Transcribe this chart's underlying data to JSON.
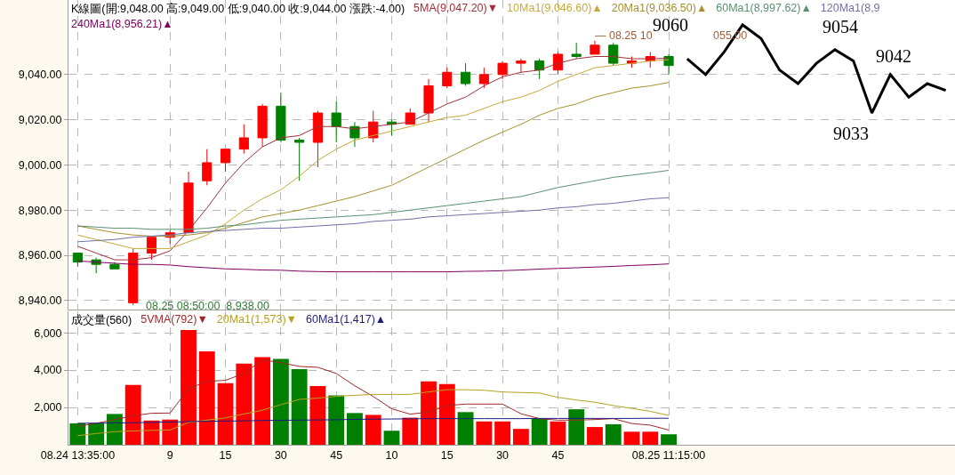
{
  "chart_data": [
    {
      "type": "candlestick",
      "title": "K線圖(開:9,048.00 高:9,049.00 低:9,040.00 收:9,044.00 漲跌:-4.00)",
      "categories": [
        null,
        null,
        null,
        null,
        null,
        null,
        null,
        null,
        null,
        null,
        null,
        null,
        null,
        null,
        null,
        null,
        null,
        null,
        null,
        null,
        null,
        null,
        null,
        null,
        null,
        null,
        null,
        null,
        null,
        null,
        null,
        null,
        null,
        null,
        null,
        null,
        null,
        null,
        null,
        null,
        null,
        null,
        null,
        null,
        null,
        null,
        null,
        null
      ],
      "ohlc": [
        [
          8961,
          8961,
          8955,
          8957
        ],
        [
          8958,
          8959,
          8952,
          8956
        ],
        [
          8956,
          8957,
          8954,
          8954
        ],
        [
          8939,
          8963,
          8938,
          8961
        ],
        [
          8961,
          8968,
          8958,
          8968
        ],
        [
          8968,
          8971,
          8965,
          8970
        ],
        [
          8970,
          8997,
          8970,
          8992
        ],
        [
          8993,
          9007,
          8991,
          9001
        ],
        [
          9001,
          9007,
          8997,
          9007
        ],
        [
          9007,
          9018,
          9005,
          9012
        ],
        [
          9012,
          9027,
          9008,
          9026
        ],
        [
          9026,
          9032,
          9010,
          9011
        ],
        [
          9011,
          9012,
          8993,
          9010
        ],
        [
          9010,
          9024,
          8999,
          9023
        ],
        [
          9023,
          9028,
          9010,
          9017
        ],
        [
          9017,
          9019,
          9008,
          9012
        ],
        [
          9012,
          9024,
          9010,
          9019
        ],
        [
          9019,
          9020,
          9013,
          9018
        ],
        [
          9018,
          9025,
          9018,
          9023
        ],
        [
          9023,
          9038,
          9019,
          9035
        ],
        [
          9035,
          9043,
          9034,
          9041
        ],
        [
          9041,
          9045,
          9035,
          9036
        ],
        [
          9036,
          9043,
          9034,
          9040
        ],
        [
          9040,
          9046,
          9038,
          9045
        ],
        [
          9045,
          9047,
          9041,
          9046
        ],
        [
          9046,
          9047,
          9038,
          9042
        ],
        [
          9042,
          9050,
          9040,
          9049
        ],
        [
          9049,
          9054,
          9047,
          9048
        ],
        [
          9049,
          9055,
          9049,
          9053
        ],
        [
          9053,
          9054,
          9044,
          9045
        ],
        [
          9045,
          9048,
          9043,
          9046
        ],
        [
          9046,
          9050,
          9043,
          9048
        ],
        [
          9048,
          9049,
          9040,
          9044
        ],
        null,
        null,
        null,
        null,
        null,
        null,
        null,
        null,
        null,
        null,
        null,
        null,
        null,
        null,
        null
      ],
      "colors": [
        "#008000",
        "#008000",
        "#008000",
        "#ff0000",
        "#ff0000",
        "#ff0000",
        "#ff0000",
        "#ff0000",
        "#ff0000",
        "#ff0000",
        "#ff0000",
        "#008000",
        "#008000",
        "#ff0000",
        "#008000",
        "#008000",
        "#ff0000",
        "#008000",
        "#ff0000",
        "#ff0000",
        "#ff0000",
        "#008000",
        "#ff0000",
        "#ff0000",
        "#ff0000",
        "#008000",
        "#ff0000",
        "#008000",
        "#ff0000",
        "#008000",
        "#ff0000",
        "#ff0000",
        "#008000",
        null,
        null,
        null,
        null,
        null,
        null,
        null,
        null,
        null,
        null,
        null,
        null,
        null,
        null,
        null
      ],
      "series": [
        {
          "type": "line",
          "name": "5MA(9,047.20)▼",
          "color": "#a0303a",
          "values": [
            8964,
            8961,
            8958,
            8958,
            8959,
            8962,
            8971,
            8981,
            8992,
            9001,
            9008,
            9012,
            9013,
            9017,
            9017,
            9016,
            9017,
            9018,
            9019,
            9023,
            9027,
            9030,
            9035,
            9039,
            9041,
            9042,
            9045,
            9047,
            9048,
            9048,
            9047,
            9047,
            9047.2,
            null,
            null,
            null,
            null,
            null,
            null,
            null,
            null,
            null,
            null,
            null,
            null,
            null,
            null,
            null
          ]
        },
        {
          "type": "line",
          "name": "10Ma1(9,046.60)▲",
          "color": "#c8aa3c",
          "values": [
            8969,
            8967,
            8965,
            8963,
            8963,
            8963,
            8966,
            8969,
            8974,
            8980,
            8985,
            8989,
            8995,
            9002,
            9007,
            9011,
            9013,
            9015,
            9017,
            9019,
            9021,
            9022,
            9025,
            9028,
            9030,
            9033,
            9037,
            9040,
            9043,
            9044,
            9045,
            9046,
            9046.6,
            null,
            null,
            null,
            null,
            null,
            null,
            null,
            null,
            null,
            null,
            null,
            null,
            null,
            null,
            null
          ]
        },
        {
          "type": "line",
          "name": "20Ma1(9,036.50)▲",
          "color": "#a8902c",
          "values": [
            8973,
            8971.5,
            8970,
            8969,
            8968.5,
            8968.5,
            8969,
            8970,
            8972,
            8974.5,
            8977,
            8978.5,
            8980,
            8982,
            8984,
            8986,
            8988.5,
            8991,
            8995,
            8999,
            9003,
            9007,
            9011,
            9014.5,
            9018,
            9022,
            9025,
            9027,
            9030,
            9032,
            9034,
            9035,
            9036.5,
            null,
            null,
            null,
            null,
            null,
            null,
            null,
            null,
            null,
            null,
            null,
            null,
            null,
            null,
            null
          ]
        },
        {
          "type": "line",
          "name": "60Ma1(8,997.62)▲",
          "color": "#5a9070",
          "values": [
            8973,
            8972.5,
            8972,
            8972,
            8971.5,
            8971.5,
            8971.5,
            8972,
            8973,
            8973.5,
            8974.5,
            8975.5,
            8976,
            8976.5,
            8977,
            8977.5,
            8978,
            8979,
            8980,
            8981,
            8982,
            8983,
            8984,
            8985,
            8986,
            8988,
            8990,
            8991.5,
            8993,
            8994.5,
            8995.5,
            8996.5,
            8997.6,
            null,
            null,
            null,
            null,
            null,
            null,
            null,
            null,
            null,
            null,
            null,
            null,
            null,
            null,
            null
          ]
        },
        {
          "type": "line",
          "name": "120Ma1(8,9",
          "color": "#7070a8",
          "values": [
            8966,
            8966.5,
            8967,
            8968,
            8968.5,
            8969,
            8970,
            8970.5,
            8971,
            8971.5,
            8972,
            8972,
            8972.5,
            8973,
            8973.5,
            8974,
            8975,
            8975.5,
            8976,
            8977,
            8977.5,
            8978,
            8978.5,
            8979,
            8979.5,
            8980,
            8981,
            8981.5,
            8982.5,
            8983,
            8984,
            8985,
            8985.5,
            null,
            null,
            null,
            null,
            null,
            null,
            null,
            null,
            null,
            null,
            null,
            null,
            null,
            null,
            null
          ]
        },
        {
          "type": "line",
          "name": "240Ma1(8,956.21)▲",
          "color": "#800060",
          "values": [
            8957.5,
            8957,
            8956.5,
            8956,
            8956,
            8955.7,
            8955,
            8954.5,
            8954,
            8953.8,
            8953.5,
            8953.4,
            8953,
            8952.8,
            8952.7,
            8952.7,
            8952.7,
            8952.7,
            8952.7,
            8952.7,
            8952.7,
            8952.9,
            8953,
            8953.2,
            8953.5,
            8953.9,
            8954.2,
            8954.5,
            8954.8,
            8955.1,
            8955.5,
            8955.8,
            8956.2,
            null,
            null,
            null,
            null,
            null,
            null,
            null,
            null,
            null,
            null,
            null,
            null,
            null,
            null,
            null
          ]
        },
        {
          "type": "line",
          "color": "#000000",
          "values": [
            null,
            null,
            null,
            null,
            null,
            null,
            null,
            null,
            null,
            null,
            null,
            null,
            null,
            null,
            null,
            null,
            null,
            null,
            null,
            null,
            null,
            null,
            null,
            null,
            null,
            null,
            null,
            null,
            null,
            null,
            null,
            null,
            null,
            9047,
            9040,
            9050,
            9062,
            9056,
            9042,
            9036,
            9045,
            9051,
            9046,
            9023,
            9040,
            9030,
            9036,
            9033
          ]
        }
      ],
      "annotations": [
        "08.25 08:50:00  8,938.00",
        "— 08.25 10",
        "055.00",
        "9060",
        "9054",
        "9042",
        "9033"
      ],
      "ylim": [
        8936,
        9073
      ],
      "yticks": [
        {
          "value": 8940,
          "label": "8,940.00"
        },
        {
          "value": 8960,
          "label": "8,960.00"
        },
        {
          "value": 8980,
          "label": "8,980.00"
        },
        {
          "value": 9000,
          "label": "9,000.00"
        },
        {
          "value": 9020,
          "label": "9,020.00"
        },
        {
          "value": 9040,
          "label": "9,040.00"
        }
      ],
      "tick_labels": "y",
      "grid": true,
      "legend": "top"
    },
    {
      "type": "bar",
      "title": "成交量(560)",
      "categories": [
        "08.24 13:35:00",
        null,
        null,
        null,
        null,
        "9",
        null,
        null,
        "15",
        null,
        null,
        "30",
        null,
        null,
        "45",
        null,
        null,
        "10",
        null,
        null,
        "15",
        null,
        null,
        "30",
        null,
        null,
        "45",
        null,
        null,
        null,
        null,
        null,
        "08.25 11:15:00",
        null,
        null,
        null,
        null,
        null,
        null,
        null,
        null,
        null,
        null,
        null,
        null,
        null,
        null,
        null
      ],
      "series": [
        {
          "type": "bar",
          "colors": [
            "#008000",
            "#008000",
            "#008000",
            "#ff0000",
            "#ff0000",
            "#ff0000",
            "#ff0000",
            "#ff0000",
            "#ff0000",
            "#ff0000",
            "#ff0000",
            "#008000",
            "#008000",
            "#ff0000",
            "#008000",
            "#008000",
            "#ff0000",
            "#008000",
            "#ff0000",
            "#ff0000",
            "#ff0000",
            "#008000",
            "#ff0000",
            "#ff0000",
            "#ff0000",
            "#008000",
            "#ff0000",
            "#008000",
            "#ff0000",
            "#008000",
            "#ff0000",
            "#ff0000",
            "#008000",
            null,
            null,
            null,
            null,
            null,
            null,
            null,
            null,
            null,
            null,
            null,
            null,
            null,
            null,
            null
          ],
          "values": [
            1150,
            1150,
            1650,
            3200,
            1300,
            1350,
            6150,
            5000,
            3300,
            4350,
            4700,
            4600,
            4050,
            3150,
            2650,
            1700,
            1600,
            750,
            1450,
            3400,
            3250,
            1750,
            1250,
            1250,
            850,
            1400,
            1250,
            1900,
            950,
            1100,
            700,
            700,
            560,
            null,
            null,
            null,
            null,
            null,
            null,
            null,
            null,
            null,
            null,
            null,
            null,
            null,
            null,
            null
          ]
        },
        {
          "type": "line",
          "name": "5VMA(792)▼",
          "color": "#a02828",
          "values": [
            980,
            1150,
            1350,
            1550,
            1690,
            1700,
            3000,
            3400,
            3450,
            3820,
            4550,
            4400,
            4200,
            4150,
            3820,
            3160,
            2590,
            1930,
            1640,
            1750,
            2100,
            2180,
            2180,
            2180,
            1660,
            1400,
            1320,
            1320,
            1350,
            1400,
            1140,
            1050,
            790,
            null,
            null,
            null,
            null,
            null,
            null,
            null,
            null,
            null,
            null,
            null,
            null,
            null,
            null,
            null
          ]
        },
        {
          "type": "line",
          "name": "20Ma1(1,573)▼",
          "color": "#b8a020",
          "values": [
            490,
            600,
            700,
            740,
            770,
            790,
            1200,
            1320,
            1440,
            1650,
            1850,
            2150,
            2430,
            2500,
            2590,
            2650,
            2700,
            2700,
            2700,
            2830,
            2950,
            2950,
            2920,
            2830,
            2800,
            2770,
            2540,
            2400,
            2280,
            2100,
            1950,
            1790,
            1570,
            null,
            null,
            null,
            null,
            null,
            null,
            null,
            null,
            null,
            null,
            null,
            null,
            null,
            null,
            null
          ]
        },
        {
          "type": "line",
          "name": "60Ma1(1,417)▲",
          "color": "#1c1c80",
          "values": [
            1150,
            1160,
            1170,
            1180,
            1200,
            1220,
            1240,
            1260,
            1270,
            1280,
            1300,
            1310,
            1320,
            1330,
            1340,
            1360,
            1370,
            1380,
            1390,
            1400,
            1400,
            1400,
            1400,
            1400,
            1400,
            1410,
            1410,
            1410,
            1410,
            1410,
            1410,
            1420,
            1420,
            null,
            null,
            null,
            null,
            null,
            null,
            null,
            null,
            null,
            null,
            null,
            null,
            null,
            null,
            null
          ]
        }
      ],
      "ylim": [
        0,
        7150
      ],
      "yticks": [
        {
          "value": 2000,
          "label": "2,000"
        },
        {
          "value": 4000,
          "label": "4,000"
        },
        {
          "value": 6000,
          "label": "6,000"
        }
      ],
      "grid": true,
      "legend": "top left"
    }
  ]
}
